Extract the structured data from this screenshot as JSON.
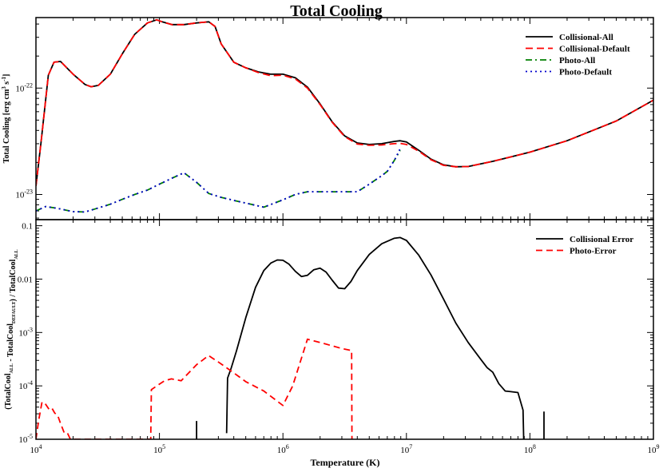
{
  "chart_data": [
    {
      "type": "line",
      "title": "Total Cooling",
      "xlabel": "",
      "ylabel": "Total Cooling [erg cm^3 s^-1]",
      "x_scale": "log",
      "y_scale": "log",
      "xlim": [
        10000,
        1000000000
      ],
      "ylim": [
        5.8e-24,
        4.6e-22
      ],
      "y_ticks": [
        {
          "value": 1e-23,
          "label": "10^-23"
        },
        {
          "value": 1e-22,
          "label": "10^-22"
        }
      ],
      "legend": "top-right",
      "series": [
        {
          "name": "Collisional-All",
          "color": "#000000",
          "dash": "solid",
          "x": [
            10000,
            11000,
            12600,
            14000,
            15800,
            20000,
            25000,
            28000,
            32000,
            40000,
            50000,
            63000,
            80000,
            95000,
            105000,
            126000,
            158000,
            200000,
            251000,
            282000,
            316000,
            400000,
            500000,
            631000,
            794000,
            1000000,
            1260000,
            1580000,
            2000000,
            2510000,
            3160000,
            4000000,
            5000000,
            6310000,
            7940000,
            8900000,
            10000000,
            12600000,
            15800000,
            20000000,
            25100000,
            31600000,
            50000000,
            100000000,
            200000000,
            500000000,
            1000000000
          ],
          "y": [
            1.2e-23,
            3.1e-23,
            1.32e-22,
            1.75e-22,
            1.78e-22,
            1.35e-22,
            1.08e-22,
            1.03e-22,
            1.06e-22,
            1.35e-22,
            2.1e-22,
            3.2e-22,
            4.1e-22,
            4.38e-22,
            4.2e-22,
            3.95e-22,
            3.95e-22,
            4.1e-22,
            4.2e-22,
            3.8e-22,
            2.6e-22,
            1.75e-22,
            1.55e-22,
            1.42e-22,
            1.35e-22,
            1.35e-22,
            1.25e-22,
            1.02e-22,
            7.1e-23,
            4.8e-23,
            3.55e-23,
            3.05e-23,
            2.95e-23,
            3e-23,
            3.15e-23,
            3.2e-23,
            3.12e-23,
            2.6e-23,
            2.15e-23,
            1.9e-23,
            1.82e-23,
            1.83e-23,
            2.05e-23,
            2.5e-23,
            3.2e-23,
            4.9e-23,
            7.7e-23
          ]
        },
        {
          "name": "Collisional-Default",
          "color": "#ff0000",
          "dash": "long-dash",
          "x": [
            10000,
            11000,
            12600,
            14000,
            15800,
            20000,
            25000,
            28000,
            32000,
            40000,
            50000,
            63000,
            80000,
            95000,
            105000,
            126000,
            158000,
            200000,
            251000,
            282000,
            316000,
            400000,
            500000,
            631000,
            794000,
            1000000,
            1260000,
            1580000,
            2000000,
            2510000,
            3160000,
            4000000,
            5000000,
            6310000,
            7940000,
            8900000,
            10000000,
            12600000,
            15800000,
            20000000,
            25100000,
            31600000,
            50000000,
            100000000,
            200000000,
            500000000,
            1000000000
          ],
          "y": [
            1.2e-23,
            3.1e-23,
            1.32e-22,
            1.75e-22,
            1.78e-22,
            1.35e-22,
            1.08e-22,
            1.03e-22,
            1.06e-22,
            1.35e-22,
            2.1e-22,
            3.2e-22,
            4.1e-22,
            4.38e-22,
            4.2e-22,
            3.95e-22,
            3.95e-22,
            4.1e-22,
            4.2e-22,
            3.8e-22,
            2.6e-22,
            1.75e-22,
            1.55e-22,
            1.4e-22,
            1.31e-22,
            1.32e-22,
            1.22e-22,
            1e-22,
            7e-23,
            4.75e-23,
            3.5e-23,
            2.98e-23,
            2.9e-23,
            2.92e-23,
            3e-23,
            3.02e-23,
            2.95e-23,
            2.55e-23,
            2.12e-23,
            1.88e-23,
            1.82e-23,
            1.83e-23,
            2.05e-23,
            2.5e-23,
            3.2e-23,
            4.9e-23,
            7.7e-23
          ]
        },
        {
          "name": "Photo-All",
          "color": "#008000",
          "dash": "dash-dot",
          "x": [
            10000,
            12000,
            15000,
            20000,
            25000,
            30000,
            40000,
            50000,
            63000,
            80000,
            100000,
            126000,
            158000,
            200000,
            251000,
            316000,
            400000,
            500000,
            700000,
            1000000,
            1260000,
            1580000,
            2000000,
            2510000,
            3160000,
            4000000,
            5000000,
            6310000,
            7000000,
            8000000,
            8900000
          ],
          "y": [
            7e-24,
            7.7e-24,
            7.4e-24,
            6.9e-24,
            6.85e-24,
            7.3e-24,
            8.1e-24,
            9e-24,
            1e-23,
            1.1e-23,
            1.25e-23,
            1.42e-23,
            1.6e-23,
            1.3e-23,
            1.02e-23,
            9.4e-24,
            8.8e-24,
            8.3e-24,
            7.6e-24,
            8.9e-24,
            1e-23,
            1.06e-23,
            1.06e-23,
            1.06e-23,
            1.06e-23,
            1.06e-23,
            1.25e-23,
            1.5e-23,
            1.65e-23,
            2.1e-23,
            2.6e-23
          ]
        },
        {
          "name": "Photo-Default",
          "color": "#0000cc",
          "dash": "dotted",
          "x": [
            10000,
            12000,
            15000,
            20000,
            25000,
            30000,
            40000,
            50000,
            63000,
            80000,
            100000,
            126000,
            158000,
            200000,
            251000,
            316000,
            400000,
            500000,
            700000,
            1000000,
            1260000,
            1580000,
            2000000,
            2510000,
            3160000,
            4000000,
            5000000,
            6310000,
            7000000,
            8000000,
            8900000
          ],
          "y": [
            7e-24,
            7.7e-24,
            7.4e-24,
            6.9e-24,
            6.85e-24,
            7.3e-24,
            8.1e-24,
            9e-24,
            1e-23,
            1.1e-23,
            1.25e-23,
            1.42e-23,
            1.6e-23,
            1.3e-23,
            1.02e-23,
            9.4e-24,
            8.8e-24,
            8.3e-24,
            7.6e-24,
            8.9e-24,
            1e-23,
            1.06e-23,
            1.06e-23,
            1.06e-23,
            1.06e-23,
            1.06e-23,
            1.25e-23,
            1.5e-23,
            1.65e-23,
            2.1e-23,
            2.7e-23
          ]
        }
      ]
    },
    {
      "type": "line",
      "title": "",
      "xlabel": "Temperature (K)",
      "ylabel": "(TotalCool_ALL - TotalCool_DEFAULT) / TotalCool_ALL",
      "x_scale": "log",
      "y_scale": "log",
      "xlim": [
        10000,
        1000000000
      ],
      "ylim": [
        1e-05,
        0.13
      ],
      "x_ticks": [
        {
          "value": 10000,
          "label": "10^4"
        },
        {
          "value": 100000,
          "label": "10^5"
        },
        {
          "value": 1000000,
          "label": "10^6"
        },
        {
          "value": 10000000,
          "label": "10^7"
        },
        {
          "value": 100000000,
          "label": "10^8"
        },
        {
          "value": 1000000000,
          "label": "10^9"
        }
      ],
      "y_ticks": [
        {
          "value": 1e-05,
          "label": "10^-5"
        },
        {
          "value": 0.0001,
          "label": "10^-4"
        },
        {
          "value": 0.001,
          "label": "10^-3"
        },
        {
          "value": 0.01,
          "label": "0.01"
        },
        {
          "value": 0.1,
          "label": "0.1"
        }
      ],
      "legend": "top-right",
      "series": [
        {
          "name": "Collisional Error",
          "color": "#000000",
          "dash": "solid",
          "x": [
            350000,
            356000,
            380000,
            420000,
            500000,
            600000,
            700000,
            800000,
            900000,
            1000000,
            1120000,
            1260000,
            1410000,
            1580000,
            1780000,
            2000000,
            2240000,
            2510000,
            2820000,
            3160000,
            3550000,
            4000000,
            5000000,
            6310000,
            7940000,
            8900000,
            10000000,
            12600000,
            15800000,
            20000000,
            25100000,
            31600000,
            39800000,
            45000000,
            50000000,
            56000000,
            63000000,
            70000000,
            80000000,
            88000000,
            89000000
          ],
          "y": [
            1.3e-05,
            0.00014,
            0.00021,
            0.00045,
            0.0019,
            0.007,
            0.0145,
            0.02,
            0.0228,
            0.0225,
            0.019,
            0.014,
            0.0112,
            0.0118,
            0.015,
            0.016,
            0.0135,
            0.0095,
            0.0068,
            0.0066,
            0.009,
            0.0145,
            0.029,
            0.046,
            0.058,
            0.06,
            0.053,
            0.028,
            0.012,
            0.0042,
            0.0015,
            0.00065,
            0.00032,
            0.00022,
            0.00018,
            0.00011,
            8e-05,
            7.8e-05,
            7.5e-05,
            3.5e-05,
            1e-05
          ]
        },
        {
          "name": "Photo-Error",
          "color": "#ff0000",
          "dash": "dashed",
          "x": [
            10000,
            10500,
            11200,
            12000,
            12800,
            13500,
            14200,
            15000,
            15800,
            17000,
            18000,
            19000,
            85000,
            86000,
            95000,
            110000,
            125000,
            150000,
            200000,
            250000,
            300000,
            400000,
            500000,
            700000,
            1000000,
            1200000,
            1580000,
            2000000,
            3000000,
            3600000,
            3620000
          ],
          "y": [
            1e-05,
            2.2e-05,
            5e-05,
            4.5e-05,
            3.6e-05,
            3.8e-05,
            3.1e-05,
            2.8e-05,
            2e-05,
            1.3e-05,
            1.3e-05,
            1e-05,
            1e-05,
            8.5e-05,
            0.0001,
            0.000125,
            0.000135,
            0.000125,
            0.00025,
            0.00037,
            0.00028,
            0.000175,
            0.00012,
            8e-05,
            4.3e-05,
            0.0001,
            0.00075,
            0.00065,
            0.0005,
            0.00046,
            1e-05
          ]
        },
        {
          "name": "",
          "color": "#000000",
          "dash": "solid",
          "x": [
            200000,
            200000
          ],
          "y": [
            1e-05,
            2.2e-05
          ]
        },
        {
          "name": "",
          "color": "#000000",
          "dash": "solid",
          "x": [
            130000000,
            130000000
          ],
          "y": [
            1e-05,
            3.3e-05
          ]
        }
      ]
    }
  ]
}
